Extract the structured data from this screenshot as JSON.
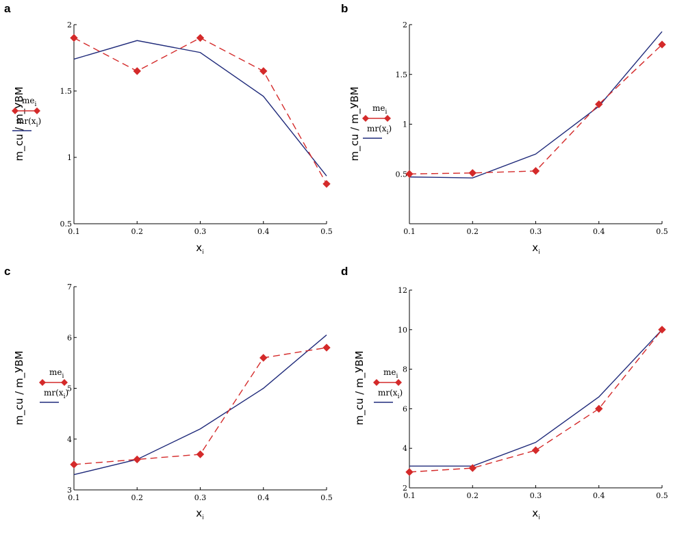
{
  "colors": {
    "measured": "#d42a2a",
    "model": "#1f2a7a",
    "axis": "#000000"
  },
  "chart_data": [
    {
      "type": "line",
      "panel_label": "a",
      "xlabel": "x",
      "xlabel_sub": "i",
      "ylabel": "m_cu / m_УВМ",
      "x": [
        0.1,
        0.2,
        0.3,
        0.4,
        0.5
      ],
      "xlim": [
        0.1,
        0.5
      ],
      "ylim": [
        0.5,
        2
      ],
      "xticks": [
        "0.1",
        "0.2",
        "0.3",
        "0.4",
        "0.5"
      ],
      "yticks": [
        {
          "v": 0.5,
          "t": "0.5"
        },
        {
          "v": 1,
          "t": "1"
        },
        {
          "v": 1.5,
          "t": "1.5"
        },
        {
          "v": 2,
          "t": "2"
        }
      ],
      "series": [
        {
          "name": "me",
          "name_sub": "i",
          "values": [
            1.9,
            1.65,
            1.9,
            1.65,
            0.8
          ]
        },
        {
          "name": "mr(x",
          "name_sub": "i",
          "name_tail": ")",
          "values": [
            1.74,
            1.88,
            1.79,
            1.46,
            0.86
          ]
        }
      ]
    },
    {
      "type": "line",
      "panel_label": "b",
      "xlabel": "x",
      "xlabel_sub": "i",
      "ylabel": "m_cu / m_УВМ",
      "x": [
        0.1,
        0.2,
        0.3,
        0.4,
        0.5
      ],
      "xlim": [
        0.1,
        0.5
      ],
      "ylim": [
        0,
        2
      ],
      "xticks": [
        "0.1",
        "0.2",
        "0.3",
        "0.4",
        "0.5"
      ],
      "yticks": [
        {
          "v": 0.5,
          "t": "0.5"
        },
        {
          "v": 1,
          "t": "1"
        },
        {
          "v": 1.5,
          "t": "1.5"
        },
        {
          "v": 2,
          "t": "2"
        }
      ],
      "series": [
        {
          "name": "me",
          "name_sub": "i",
          "values": [
            0.5,
            0.51,
            0.53,
            1.2,
            1.8
          ]
        },
        {
          "name": "mr(x",
          "name_sub": "i",
          "name_tail": ")",
          "values": [
            0.47,
            0.46,
            0.7,
            1.18,
            1.93
          ]
        }
      ]
    },
    {
      "type": "line",
      "panel_label": "c",
      "xlabel": "x",
      "xlabel_sub": "i",
      "ylabel": "m_cu / m_УВМ",
      "x": [
        0.1,
        0.2,
        0.3,
        0.4,
        0.5
      ],
      "xlim": [
        0.1,
        0.5
      ],
      "ylim": [
        3,
        7
      ],
      "xticks": [
        "0.1",
        "0.2",
        "0.3",
        "0.4",
        "0.5"
      ],
      "yticks": [
        {
          "v": 3,
          "t": "3"
        },
        {
          "v": 4,
          "t": "4"
        },
        {
          "v": 5,
          "t": "5"
        },
        {
          "v": 6,
          "t": "6"
        },
        {
          "v": 7,
          "t": "7"
        }
      ],
      "series": [
        {
          "name": "me",
          "name_sub": "i",
          "values": [
            3.5,
            3.6,
            3.7,
            5.6,
            5.8
          ]
        },
        {
          "name": "mr(x",
          "name_sub": "i",
          "name_tail": ")",
          "values": [
            3.3,
            3.6,
            4.2,
            5.0,
            6.05
          ]
        }
      ]
    },
    {
      "type": "line",
      "panel_label": "d",
      "xlabel": "x",
      "xlabel_sub": "i",
      "ylabel": "m_cu / m_УВМ",
      "x": [
        0.1,
        0.2,
        0.3,
        0.4,
        0.5
      ],
      "xlim": [
        0.1,
        0.5
      ],
      "ylim": [
        2,
        12
      ],
      "xticks": [
        "0.1",
        "0.2",
        "0.3",
        "0.4",
        "0.5"
      ],
      "yticks": [
        {
          "v": 2,
          "t": "2"
        },
        {
          "v": 4,
          "t": "4"
        },
        {
          "v": 6,
          "t": "6"
        },
        {
          "v": 8,
          "t": "8"
        },
        {
          "v": 10,
          "t": "10"
        },
        {
          "v": 12,
          "t": "12"
        }
      ],
      "series": [
        {
          "name": "me",
          "name_sub": "i",
          "values": [
            2.8,
            3.0,
            3.9,
            6.0,
            10.0
          ]
        },
        {
          "name": "mr(x",
          "name_sub": "i",
          "name_tail": ")",
          "values": [
            3.1,
            3.1,
            4.3,
            6.6,
            10.0
          ]
        }
      ]
    }
  ]
}
